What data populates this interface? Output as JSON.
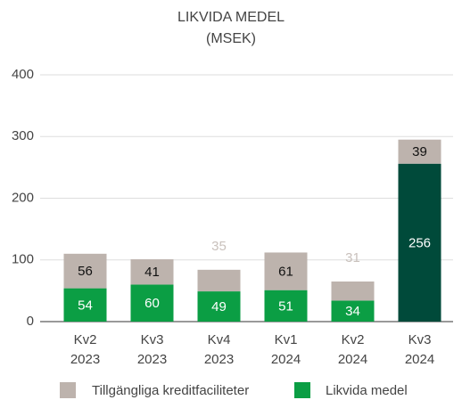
{
  "chart_data": {
    "type": "stacked_bar",
    "title": [
      "LIKVIDA MEDEL",
      "(MSEK)"
    ],
    "categories": [
      [
        "Kv2",
        "2023"
      ],
      [
        "Kv3",
        "2023"
      ],
      [
        "Kv4",
        "2023"
      ],
      [
        "Kv1",
        "2024"
      ],
      [
        "Kv2",
        "2024"
      ],
      [
        "Kv3",
        "2024"
      ]
    ],
    "series": [
      {
        "name": "Likvida medel",
        "color": "#0b9e44",
        "colors": [
          "#0b9e44",
          "#0b9e44",
          "#0b9e44",
          "#0b9e44",
          "#0b9e44",
          "#004a3a"
        ],
        "values": [
          54,
          60,
          49,
          51,
          34,
          256
        ]
      },
      {
        "name": "Tillgängliga kreditfaciliteter",
        "color": "#bdb3ad",
        "values": [
          56,
          41,
          35,
          61,
          31,
          39
        ]
      }
    ],
    "legend_order": [
      1,
      0
    ],
    "ylim": [
      0,
      400
    ],
    "yticks": [
      0,
      100,
      200,
      300,
      400
    ],
    "grid": true
  }
}
